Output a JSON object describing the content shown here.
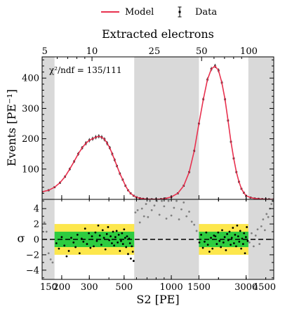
{
  "chart_data": {
    "type": "line",
    "xscale": "log",
    "top_axis": {
      "title": "Extracted electrons",
      "scale": "log",
      "ticks": [
        {
          "value": 5,
          "label": "5"
        },
        {
          "value": 10,
          "label": "10"
        },
        {
          "value": 25,
          "label": "25"
        },
        {
          "value": 50,
          "label": "50"
        },
        {
          "value": 100,
          "label": "100"
        }
      ]
    },
    "legend": {
      "placement": "top-center",
      "entries": [
        {
          "name": "Model",
          "style": "line",
          "color": "#e8314f"
        },
        {
          "name": "Data",
          "style": "errorbar",
          "color": "#000000"
        }
      ]
    },
    "main": {
      "ylabel": "Events [PE⁻¹]",
      "xlim": [
        150,
        4500
      ],
      "ylim": [
        0,
        470
      ],
      "yticks": [
        {
          "value": 100,
          "label": "100"
        },
        {
          "value": 200,
          "label": "200"
        },
        {
          "value": 300,
          "label": "300"
        },
        {
          "value": 400,
          "label": "400"
        }
      ],
      "annotation": "χ²/ndf = 135/111",
      "fit_ranges": [
        [
          180,
          580
        ],
        [
          1500,
          3100
        ]
      ],
      "data": {
        "x": [
          150,
          165,
          180,
          195,
          210,
          225,
          240,
          255,
          270,
          285,
          300,
          315,
          330,
          345,
          360,
          375,
          390,
          405,
          420,
          435,
          450,
          470,
          490,
          510,
          530,
          550,
          575,
          600,
          630,
          660,
          700,
          750,
          800,
          860,
          920,
          1000,
          1100,
          1200,
          1300,
          1400,
          1500,
          1600,
          1700,
          1800,
          1900,
          2000,
          2100,
          2200,
          2300,
          2400,
          2500,
          2600,
          2700,
          2800,
          2900,
          3000,
          3200,
          3400,
          3600,
          3800,
          4000,
          4200,
          4500
        ],
        "y": [
          25,
          30,
          40,
          55,
          75,
          100,
          125,
          150,
          170,
          185,
          195,
          200,
          205,
          208,
          205,
          198,
          185,
          170,
          150,
          130,
          110,
          85,
          65,
          45,
          30,
          20,
          12,
          7,
          4,
          2,
          1,
          0.5,
          0.5,
          1,
          3,
          8,
          20,
          45,
          90,
          160,
          250,
          330,
          395,
          430,
          440,
          425,
          385,
          330,
          260,
          190,
          135,
          90,
          58,
          35,
          22,
          12,
          6,
          3,
          2,
          1,
          0.5,
          0.3,
          0.2
        ],
        "err": [
          3,
          3,
          3,
          4,
          4,
          5,
          5,
          6,
          6,
          7,
          7,
          7,
          7,
          7,
          7,
          7,
          7,
          6,
          6,
          6,
          5,
          5,
          4,
          4,
          3,
          3,
          3,
          2,
          2,
          1,
          1,
          1,
          1,
          1,
          1,
          2,
          2,
          3,
          4,
          5,
          6,
          7,
          7,
          7,
          7,
          7,
          7,
          7,
          6,
          6,
          5,
          4,
          4,
          3,
          3,
          2,
          2,
          1,
          1,
          1,
          1,
          1,
          1
        ]
      },
      "model": {
        "x": [
          150,
          165,
          180,
          195,
          210,
          225,
          240,
          255,
          270,
          285,
          300,
          315,
          330,
          345,
          360,
          375,
          390,
          405,
          420,
          435,
          450,
          470,
          490,
          510,
          530,
          550,
          575,
          600,
          630,
          660,
          700,
          750,
          800,
          860,
          920,
          1000,
          1100,
          1200,
          1300,
          1400,
          1500,
          1600,
          1700,
          1800,
          1900,
          2000,
          2100,
          2200,
          2300,
          2400,
          2500,
          2600,
          2700,
          2800,
          2900,
          3000,
          3200,
          3400,
          3600,
          3800,
          4000,
          4200,
          4500
        ],
        "y": [
          25,
          30,
          40,
          55,
          75,
          100,
          125,
          150,
          170,
          185,
          195,
          200,
          205,
          208,
          205,
          198,
          185,
          170,
          150,
          130,
          110,
          85,
          65,
          45,
          30,
          20,
          12,
          7,
          4,
          2,
          1,
          0.5,
          0.5,
          1,
          3,
          8,
          20,
          45,
          90,
          160,
          250,
          330,
          395,
          430,
          440,
          425,
          385,
          330,
          260,
          190,
          135,
          90,
          58,
          35,
          22,
          12,
          6,
          3,
          2,
          1,
          0.5,
          0.3,
          0.2
        ]
      }
    },
    "residual": {
      "ylabel": "σ",
      "xlabel": "S2 [PE]",
      "ylim": [
        -5.2,
        5.2
      ],
      "yticks": [
        {
          "value": -4,
          "label": "−4"
        },
        {
          "value": -2,
          "label": "−2"
        },
        {
          "value": 0,
          "label": "0"
        },
        {
          "value": 2,
          "label": "2"
        },
        {
          "value": 4,
          "label": "4"
        }
      ],
      "xticks": [
        {
          "value": 150,
          "label": "150"
        },
        {
          "value": 200,
          "label": "200"
        },
        {
          "value": 300,
          "label": "300"
        },
        {
          "value": 500,
          "label": "500"
        },
        {
          "value": 1000,
          "label": "1000"
        },
        {
          "value": 1500,
          "label": "1500"
        },
        {
          "value": 3000,
          "label": "3000"
        },
        {
          "value": 4500,
          "label": "4500"
        }
      ],
      "bands": [
        {
          "sigma": 2,
          "color": "#fde74c"
        },
        {
          "sigma": 1,
          "color": "#2ecc40"
        }
      ],
      "excluded_ranges": [
        [
          150,
          180
        ],
        [
          580,
          1500
        ],
        [
          3100,
          4500
        ]
      ],
      "points_in_fit": {
        "x": [
          185,
          192,
          200,
          208,
          215,
          222,
          230,
          238,
          245,
          252,
          260,
          268,
          275,
          282,
          290,
          298,
          305,
          312,
          320,
          328,
          335,
          342,
          350,
          358,
          365,
          372,
          380,
          388,
          395,
          402,
          410,
          418,
          425,
          432,
          440,
          448,
          455,
          462,
          470,
          478,
          485,
          492,
          500,
          508,
          515,
          522,
          530,
          538,
          545,
          552,
          560,
          568,
          575,
          1510,
          1550,
          1590,
          1630,
          1670,
          1710,
          1750,
          1790,
          1830,
          1870,
          1910,
          1950,
          1990,
          2030,
          2070,
          2110,
          2150,
          2190,
          2230,
          2270,
          2310,
          2350,
          2390,
          2430,
          2470,
          2510,
          2550,
          2590,
          2630,
          2670,
          2710,
          2750,
          2790,
          2830,
          2870,
          2910,
          2950,
          2990,
          3030,
          3070
        ],
        "y": [
          -0.5,
          -1.2,
          0.3,
          -0.8,
          -2.2,
          -1.5,
          0.2,
          -0.4,
          -1.0,
          0.6,
          -1.8,
          0.1,
          -0.3,
          1.4,
          -0.6,
          0.8,
          -1.1,
          0.4,
          -0.9,
          0.9,
          -0.2,
          1.8,
          0.5,
          -0.7,
          1.2,
          0.2,
          -1.3,
          0.7,
          1.6,
          -0.1,
          0.4,
          -0.5,
          1.0,
          -0.8,
          0.3,
          1.1,
          -0.4,
          0.6,
          -1.5,
          -0.2,
          0.8,
          -0.6,
          1.3,
          0.2,
          -1.0,
          0.4,
          -1.9,
          0.1,
          -0.5,
          -2.5,
          -0.9,
          -1.6,
          -2.8,
          -0.4,
          0.6,
          -1.1,
          -0.3,
          0.9,
          -0.7,
          -1.6,
          0.2,
          -1.2,
          0.5,
          0.4,
          -0.6,
          0.9,
          -0.2,
          -1.0,
          1.2,
          -0.4,
          0.3,
          -1.4,
          0.7,
          -0.1,
          1.0,
          -0.7,
          0.2,
          1.5,
          -0.5,
          0.6,
          -0.9,
          1.8,
          0.4,
          -0.3,
          1.1,
          -1.2,
          0.1,
          -0.6,
          0.8,
          -1.8,
          0.3,
          1.6,
          -0.2
        ],
        "color": "#000000"
      },
      "points_outside": {
        "x": [
          150,
          155,
          160,
          165,
          170,
          175,
          590,
          610,
          630,
          650,
          670,
          690,
          710,
          730,
          750,
          780,
          810,
          840,
          870,
          900,
          930,
          960,
          1000,
          1040,
          1080,
          1120,
          1160,
          1200,
          1250,
          1300,
          1350,
          1400,
          1450,
          3150,
          3250,
          3350,
          3450,
          3550,
          3650,
          3750,
          3850,
          3950,
          4050,
          4150,
          4250,
          4350,
          4450
        ],
        "y": [
          1.5,
          2.2,
          1.0,
          -1.8,
          -2.6,
          -3.0,
          3.5,
          3.8,
          2.2,
          4.0,
          3.0,
          4.6,
          2.9,
          5.0,
          3.8,
          4.4,
          5.0,
          3.2,
          5.0,
          4.3,
          2.7,
          5.0,
          3.1,
          4.1,
          5.0,
          2.6,
          3.9,
          4.8,
          3.0,
          3.6,
          2.3,
          1.9,
          1.1,
          -0.4,
          0.8,
          -0.9,
          0.5,
          1.3,
          -0.6,
          1.7,
          2.6,
          1.2,
          3.3,
          2.9,
          4.0,
          4.6,
          5.0
        ],
        "color": "#808080"
      }
    }
  }
}
